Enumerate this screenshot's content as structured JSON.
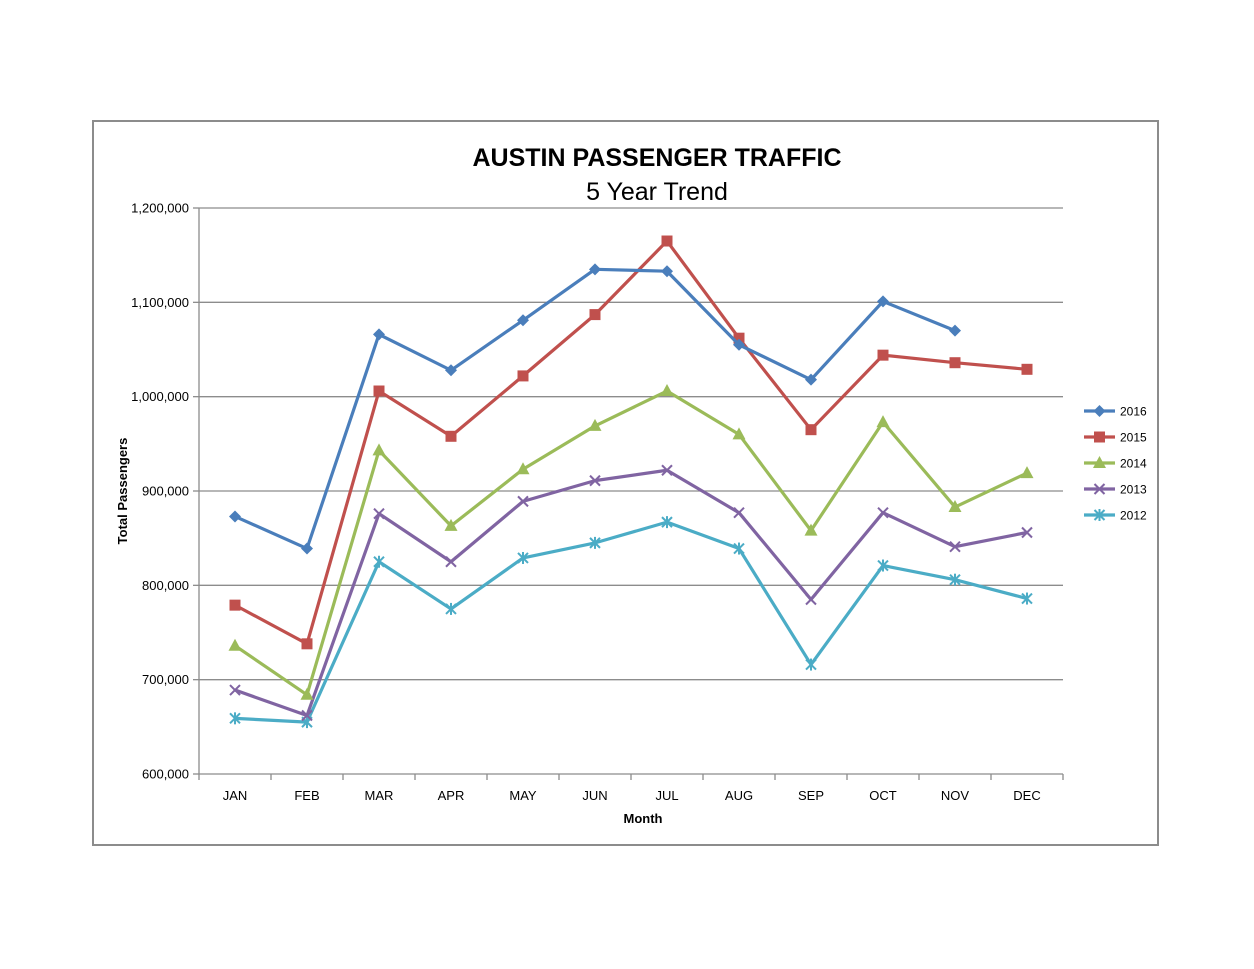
{
  "chart_data": {
    "type": "line",
    "title": "AUSTIN PASSENGER TRAFFIC",
    "subtitle": "5 Year Trend",
    "xlabel": "Month",
    "ylabel": "Total Passengers",
    "categories": [
      "JAN",
      "FEB",
      "MAR",
      "APR",
      "MAY",
      "JUN",
      "JUL",
      "AUG",
      "SEP",
      "OCT",
      "NOV",
      "DEC"
    ],
    "ylim": [
      600000,
      1200000
    ],
    "yticks": [
      600000,
      700000,
      800000,
      900000,
      1000000,
      1100000,
      1200000
    ],
    "ytick_labels": [
      "600,000",
      "700,000",
      "800,000",
      "900,000",
      "1,000,000",
      "1,100,000",
      "1,200,000"
    ],
    "grid": "horizontal",
    "legend_position": "right",
    "series": [
      {
        "name": "2016",
        "color": "#4a7ebb",
        "marker": "diamond",
        "values": [
          873000,
          839000,
          1066000,
          1028000,
          1081000,
          1135000,
          1133000,
          1055000,
          1018000,
          1101000,
          1070000,
          null
        ]
      },
      {
        "name": "2015",
        "color": "#c0504d",
        "marker": "square",
        "values": [
          779000,
          738000,
          1006000,
          958000,
          1022000,
          1087000,
          1165000,
          1062000,
          965000,
          1044000,
          1036000,
          1029000
        ]
      },
      {
        "name": "2014",
        "color": "#9bbb59",
        "marker": "triangle",
        "values": [
          736000,
          684000,
          943000,
          863000,
          923000,
          969000,
          1006000,
          960000,
          858000,
          973000,
          883000,
          919000
        ]
      },
      {
        "name": "2013",
        "color": "#8064a2",
        "marker": "x",
        "values": [
          689000,
          662000,
          876000,
          825000,
          889000,
          911000,
          922000,
          877000,
          785000,
          877000,
          841000,
          856000
        ]
      },
      {
        "name": "2012",
        "color": "#4bacc6",
        "marker": "star",
        "values": [
          659000,
          655000,
          825000,
          775000,
          829000,
          845000,
          867000,
          839000,
          716000,
          821000,
          806000,
          786000
        ]
      }
    ]
  }
}
